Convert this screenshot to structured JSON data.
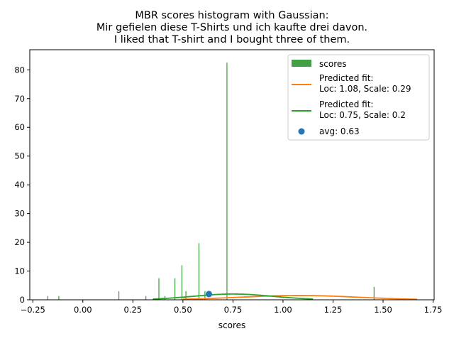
{
  "chart_data": {
    "type": "bar",
    "title_lines": [
      "MBR scores histogram with Gaussian:",
      "Mir gefielen diese T-Shirts und ich kaufte drei davon.",
      "I liked that T-shirt and I bought three of them."
    ],
    "xlabel": "scores",
    "ylabel": "",
    "xlim": [
      -0.265,
      1.755
    ],
    "ylim": [
      0,
      87
    ],
    "xticks": [
      -0.25,
      0.0,
      0.25,
      0.5,
      0.75,
      1.0,
      1.25,
      1.5,
      1.75
    ],
    "xtick_labels": [
      "−0.25",
      "0.00",
      "0.25",
      "0.50",
      "0.75",
      "1.00",
      "1.25",
      "1.50",
      "1.75"
    ],
    "yticks": [
      0,
      10,
      20,
      30,
      40,
      50,
      60,
      70,
      80
    ],
    "ytick_labels": [
      "0",
      "10",
      "20",
      "30",
      "40",
      "50",
      "60",
      "70",
      "80"
    ],
    "histogram": {
      "name": "scores",
      "color": "#43a047",
      "bin_width": 0.0045,
      "bins": [
        {
          "x": -0.175,
          "y": 1.3
        },
        {
          "x": -0.12,
          "y": 1.3
        },
        {
          "x": 0.18,
          "y": 3.0
        },
        {
          "x": 0.315,
          "y": 1.3
        },
        {
          "x": 0.38,
          "y": 7.5
        },
        {
          "x": 0.41,
          "y": 1.3
        },
        {
          "x": 0.46,
          "y": 7.5
        },
        {
          "x": 0.495,
          "y": 12.0
        },
        {
          "x": 0.515,
          "y": 3.0
        },
        {
          "x": 0.58,
          "y": 19.7
        },
        {
          "x": 0.61,
          "y": 3.0
        },
        {
          "x": 0.72,
          "y": 82.5
        },
        {
          "x": 1.455,
          "y": 4.5
        }
      ]
    },
    "series": [
      {
        "name": "Predicted fit:\nLoc: 1.08, Scale: 0.29",
        "legend_lines": [
          "Predicted fit:",
          "Loc: 1.08, Scale: 0.29"
        ],
        "type": "gaussian",
        "loc": 1.08,
        "scale": 0.29,
        "peak": 1.5,
        "x_range": [
          0.5,
          1.67
        ],
        "color": "#ff7f0e"
      },
      {
        "name": "Predicted fit:\nLoc: 0.75, Scale: 0.2",
        "legend_lines": [
          "Predicted fit:",
          "Loc: 0.75, Scale: 0.2"
        ],
        "type": "gaussian",
        "loc": 0.75,
        "scale": 0.2,
        "peak": 2.0,
        "x_range": [
          0.35,
          1.15
        ],
        "color": "#2ca02c"
      }
    ],
    "avg_point": {
      "label": "avg: 0.63",
      "x": 0.63,
      "y": 2.0,
      "color": "#1f77b4"
    },
    "legend_position": "top-right",
    "grid": false
  }
}
